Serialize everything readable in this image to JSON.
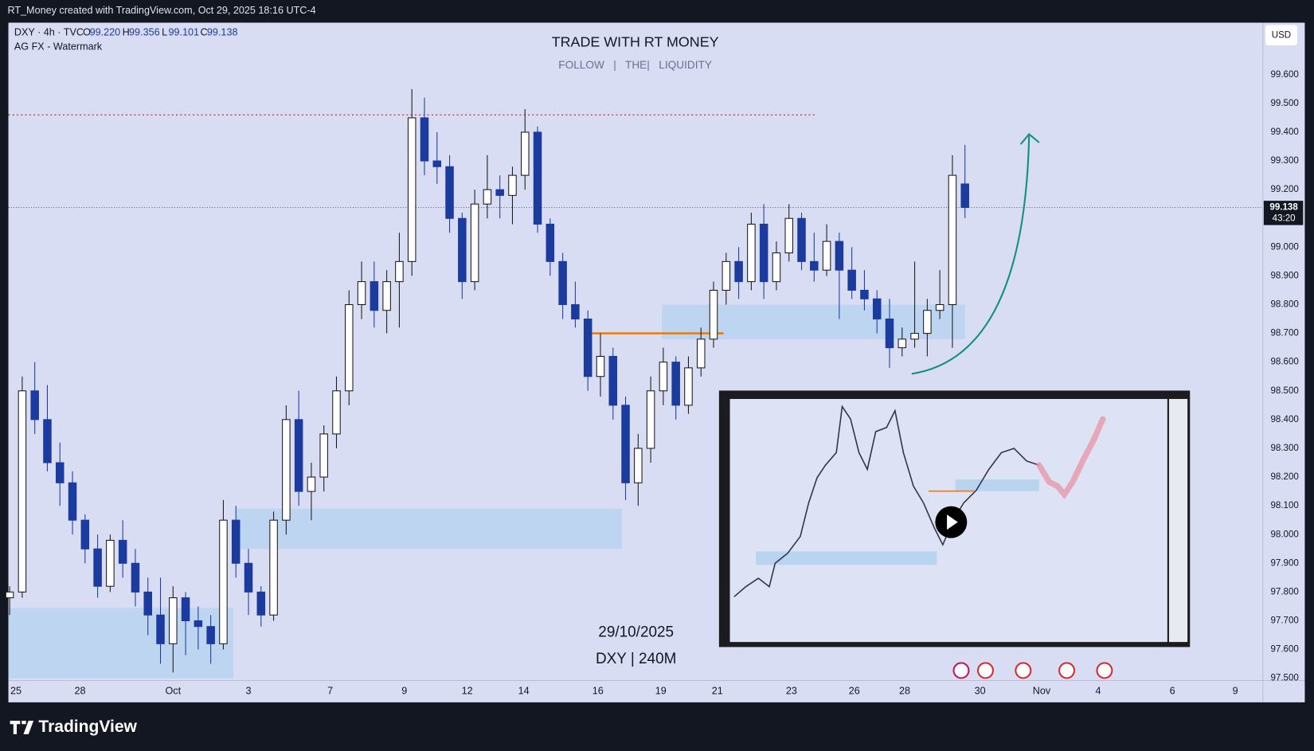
{
  "top_bar": "RT_Money created with TradingView.com, Oct 29, 2025 18:16 UTC-4",
  "footer": "TradingView",
  "chart_data": {
    "type": "candlestick",
    "title": "TRADE WITH RT MONEY",
    "subtitle": "FOLLOW   |   THE|   LIQUIDITY",
    "symbol": "DXY · 4h · TVC",
    "ohlc_legend": [
      {
        "key": "O",
        "value": "99.220"
      },
      {
        "key": "H",
        "value": "99.356"
      },
      {
        "key": "L",
        "value": "99.101"
      },
      {
        "key": "C",
        "value": "99.138"
      }
    ],
    "indicator": "AG FX - Watermark",
    "annotations": [
      "29/10/2025",
      "DXY | 240M"
    ],
    "currency": "USD",
    "last_price_label": "99.138",
    "countdown": "43:20",
    "up_color": "#ffffff",
    "down_color": "#1c3b9e",
    "open": [
      97.78,
      97.8,
      98.5,
      98.4,
      98.25,
      98.18,
      98.05,
      97.95,
      97.82,
      97.98,
      97.9,
      97.8,
      97.72,
      97.62,
      97.78,
      97.7,
      97.68,
      97.62,
      98.05,
      97.9,
      97.8,
      97.72,
      98.05,
      98.4,
      98.15,
      98.2,
      98.35,
      98.5,
      98.8,
      98.88,
      98.78,
      98.88,
      98.95,
      99.45,
      99.3,
      99.28,
      99.1,
      98.88,
      99.15,
      99.2,
      99.18,
      99.25,
      99.4,
      99.08,
      98.95,
      98.8,
      98.75,
      98.55,
      98.62,
      98.45,
      98.18,
      98.3,
      98.5,
      98.6,
      98.45,
      98.58,
      98.68,
      98.85,
      98.95,
      98.88,
      99.08,
      98.88,
      98.98,
      99.1,
      98.95,
      98.92,
      99.02,
      98.92,
      98.85,
      98.82,
      98.75,
      98.65,
      98.68,
      98.7,
      98.78,
      98.8,
      99.22
    ],
    "high": [
      97.82,
      98.55,
      98.6,
      98.52,
      98.32,
      98.22,
      98.07,
      98.0,
      98.0,
      98.05,
      97.95,
      97.85,
      97.85,
      97.82,
      97.8,
      97.75,
      97.72,
      98.12,
      98.1,
      97.95,
      97.82,
      98.08,
      98.45,
      98.5,
      98.25,
      98.38,
      98.55,
      98.85,
      98.95,
      98.95,
      98.92,
      99.05,
      99.55,
      99.52,
      99.4,
      99.32,
      99.12,
      99.2,
      99.32,
      99.25,
      99.28,
      99.48,
      99.42,
      99.1,
      98.98,
      98.88,
      98.78,
      98.7,
      98.65,
      98.48,
      98.35,
      98.55,
      98.65,
      98.62,
      98.62,
      98.72,
      98.88,
      98.98,
      99.0,
      99.12,
      99.15,
      99.02,
      99.15,
      99.12,
      99.05,
      99.08,
      99.05,
      99.0,
      98.92,
      98.85,
      98.82,
      98.72,
      98.95,
      98.82,
      98.92,
      99.32,
      99.356
    ],
    "low": [
      97.72,
      97.78,
      98.35,
      98.22,
      98.1,
      98.0,
      97.9,
      97.78,
      97.8,
      97.85,
      97.75,
      97.65,
      97.55,
      97.52,
      97.58,
      97.6,
      97.55,
      97.6,
      97.85,
      97.72,
      97.68,
      97.7,
      98.0,
      98.1,
      98.05,
      98.15,
      98.3,
      98.45,
      98.75,
      98.72,
      98.7,
      98.72,
      98.9,
      99.25,
      99.22,
      99.05,
      98.82,
      98.85,
      99.1,
      99.1,
      99.08,
      99.2,
      99.05,
      98.9,
      98.75,
      98.72,
      98.5,
      98.48,
      98.4,
      98.12,
      98.1,
      98.25,
      98.45,
      98.4,
      98.42,
      98.55,
      98.65,
      98.8,
      98.82,
      98.85,
      98.82,
      98.85,
      98.95,
      98.92,
      98.88,
      98.9,
      98.75,
      98.82,
      98.78,
      98.7,
      98.58,
      98.62,
      98.65,
      98.62,
      98.75,
      98.65,
      99.101
    ],
    "close": [
      97.8,
      98.5,
      98.4,
      98.25,
      98.18,
      98.05,
      97.95,
      97.82,
      97.98,
      97.9,
      97.8,
      97.72,
      97.62,
      97.78,
      97.7,
      97.68,
      97.62,
      98.05,
      97.9,
      97.8,
      97.72,
      98.05,
      98.4,
      98.15,
      98.2,
      98.35,
      98.5,
      98.8,
      98.88,
      98.78,
      98.88,
      98.95,
      99.45,
      99.3,
      99.28,
      99.1,
      98.88,
      99.15,
      99.2,
      99.18,
      99.25,
      99.4,
      99.08,
      98.95,
      98.8,
      98.75,
      98.55,
      98.62,
      98.45,
      98.18,
      98.3,
      98.5,
      98.6,
      98.45,
      98.58,
      98.68,
      98.85,
      98.95,
      98.88,
      99.08,
      98.88,
      98.98,
      99.1,
      98.95,
      98.92,
      99.02,
      98.92,
      98.85,
      98.82,
      98.75,
      98.65,
      98.68,
      98.7,
      98.78,
      98.8,
      99.25,
      99.138
    ],
    "xlim": [
      -0.1,
      99.7
    ],
    "xticks": [
      {
        "value": 0.5,
        "label": "25"
      },
      {
        "value": 5.6,
        "label": "28"
      },
      {
        "value": 13.0,
        "label": "Oct"
      },
      {
        "value": 19.0,
        "label": "3"
      },
      {
        "value": 25.5,
        "label": "7"
      },
      {
        "value": 31.4,
        "label": "9"
      },
      {
        "value": 36.4,
        "label": "12"
      },
      {
        "value": 40.9,
        "label": "14"
      },
      {
        "value": 46.8,
        "label": "16"
      },
      {
        "value": 51.8,
        "label": "19"
      },
      {
        "value": 56.3,
        "label": "21"
      },
      {
        "value": 62.2,
        "label": "23"
      },
      {
        "value": 67.2,
        "label": "26"
      },
      {
        "value": 71.2,
        "label": "28"
      },
      {
        "value": 77.2,
        "label": "30"
      },
      {
        "value": 82.1,
        "label": "Nov"
      },
      {
        "value": 86.6,
        "label": "4"
      },
      {
        "value": 92.5,
        "label": "6"
      },
      {
        "value": 97.5,
        "label": "9"
      }
    ],
    "ylim": [
      97.492,
      99.781
    ],
    "yticks": [
      {
        "value": 97.5,
        "label": "97.500"
      },
      {
        "value": 97.6,
        "label": "97.600"
      },
      {
        "value": 97.7,
        "label": "97.700"
      },
      {
        "value": 97.8,
        "label": "97.800"
      },
      {
        "value": 97.9,
        "label": "97.900"
      },
      {
        "value": 98.0,
        "label": "98.000"
      },
      {
        "value": 98.1,
        "label": "98.100"
      },
      {
        "value": 98.2,
        "label": "98.200"
      },
      {
        "value": 98.3,
        "label": "98.300"
      },
      {
        "value": 98.4,
        "label": "98.400"
      },
      {
        "value": 98.5,
        "label": "98.500"
      },
      {
        "value": 98.6,
        "label": "98.600"
      },
      {
        "value": 98.7,
        "label": "98.700"
      },
      {
        "value": 98.8,
        "label": "98.800"
      },
      {
        "value": 98.9,
        "label": "98.900"
      },
      {
        "value": 99.0,
        "label": "99.000"
      },
      {
        "value": 99.1,
        "label": "99.100"
      },
      {
        "value": 99.2,
        "label": "99.200"
      },
      {
        "value": 99.3,
        "label": "99.300"
      },
      {
        "value": 99.4,
        "label": "99.400"
      },
      {
        "value": 99.5,
        "label": "99.500"
      },
      {
        "value": 99.6,
        "label": "99.600"
      }
    ],
    "grid": false,
    "zones": [
      {
        "x": [
          -0.1,
          17.8
        ],
        "y": [
          97.5,
          97.745
        ]
      },
      {
        "x": [
          18.0,
          48.7
        ],
        "y": [
          97.95,
          98.09
        ]
      },
      {
        "x": [
          51.9,
          76.0
        ],
        "y": [
          98.68,
          98.8
        ]
      }
    ],
    "zone_color": "#b9d4ee",
    "levels": [
      {
        "price": 99.46,
        "x": [
          -0.1,
          64.2
        ],
        "color": "#e53935",
        "style": "dotted"
      },
      {
        "price": 98.7,
        "x": [
          45.8,
          56.8
        ],
        "color": "#f57c00",
        "style": "solid"
      }
    ]
  }
}
